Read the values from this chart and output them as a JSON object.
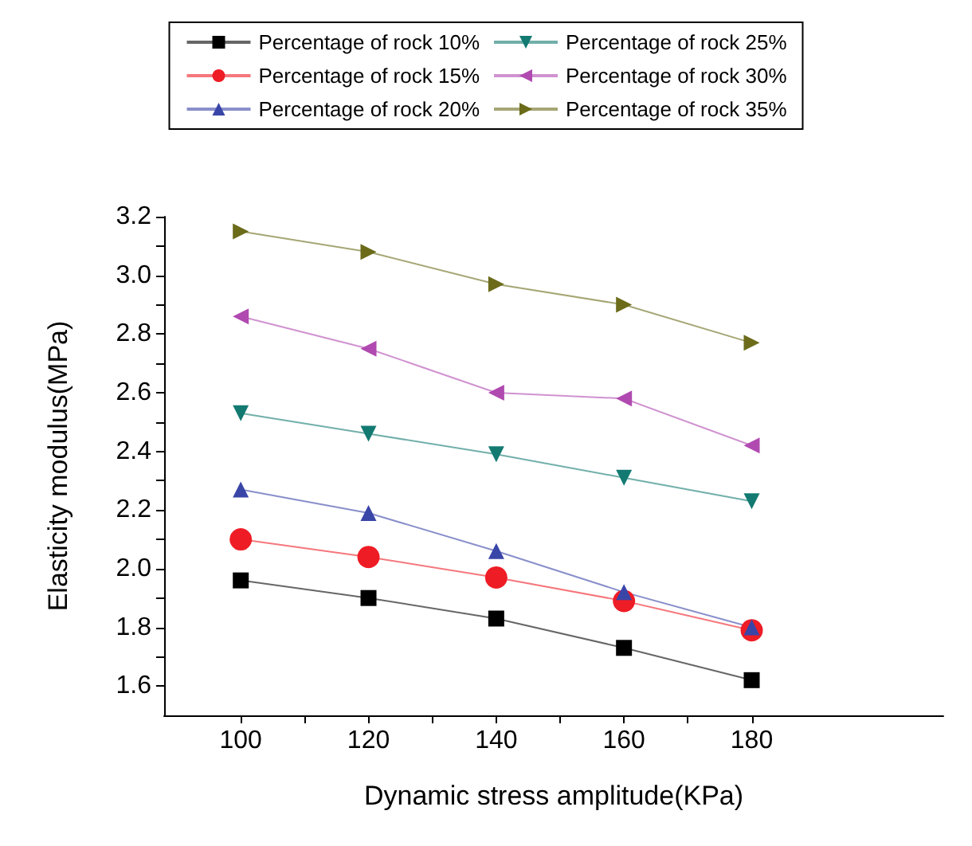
{
  "chart_data": {
    "type": "line",
    "xlabel": "Dynamic stress amplitude(KPa)",
    "ylabel": "Elasticity modulus(MPa)",
    "x": [
      100,
      120,
      140,
      160,
      180
    ],
    "series": [
      {
        "name": "Percentage of rock 10%",
        "color": "#000000",
        "marker": "square",
        "values": [
          1.96,
          1.9,
          1.83,
          1.73,
          1.62
        ]
      },
      {
        "name": "Percentage of rock 15%",
        "color": "#ee1c25",
        "marker": "circle",
        "values": [
          2.1,
          2.04,
          1.97,
          1.89,
          1.79
        ]
      },
      {
        "name": "Percentage of rock 20%",
        "color": "#3a45a8",
        "marker": "triangle",
        "values": [
          2.27,
          2.19,
          2.06,
          1.92,
          1.8
        ]
      },
      {
        "name": "Percentage of rock 25%",
        "color": "#137a72",
        "marker": "triangle-down",
        "values": [
          2.53,
          2.46,
          2.39,
          2.31,
          2.23
        ]
      },
      {
        "name": "Percentage of rock 30%",
        "color": "#b04ab0",
        "marker": "triangle-left",
        "values": [
          2.86,
          2.75,
          2.6,
          2.58,
          2.42
        ]
      },
      {
        "name": "Percentage of rock 35%",
        "color": "#6b6b1a",
        "marker": "triangle-right",
        "values": [
          3.15,
          3.08,
          2.97,
          2.9,
          2.77
        ]
      }
    ],
    "xlim": [
      88,
      210
    ],
    "xticks": [
      100,
      {
        "value": 110,
        "label": null
      },
      120,
      {
        "value": 130,
        "label": null
      },
      140,
      {
        "value": 150,
        "label": null
      },
      160,
      {
        "value": 170,
        "label": null
      },
      180
    ],
    "ylim": [
      1.5,
      3.2
    ],
    "yticks": [
      1.6,
      {
        "value": 1.7,
        "label": null
      },
      1.8,
      {
        "value": 1.9,
        "label": null
      },
      {
        "value": 2,
        "label": "2.0"
      },
      {
        "value": 2.1,
        "label": null
      },
      2.2,
      {
        "value": 2.3,
        "label": null
      },
      2.4,
      {
        "value": 2.5,
        "label": null
      },
      2.6,
      {
        "value": 2.7,
        "label": null
      },
      2.8,
      {
        "value": 2.9,
        "label": null
      },
      {
        "value": 3,
        "label": "3.0"
      },
      {
        "value": 3.1,
        "label": null
      },
      3.2
    ],
    "grid": false,
    "legend": "top",
    "line_style": "solid"
  }
}
